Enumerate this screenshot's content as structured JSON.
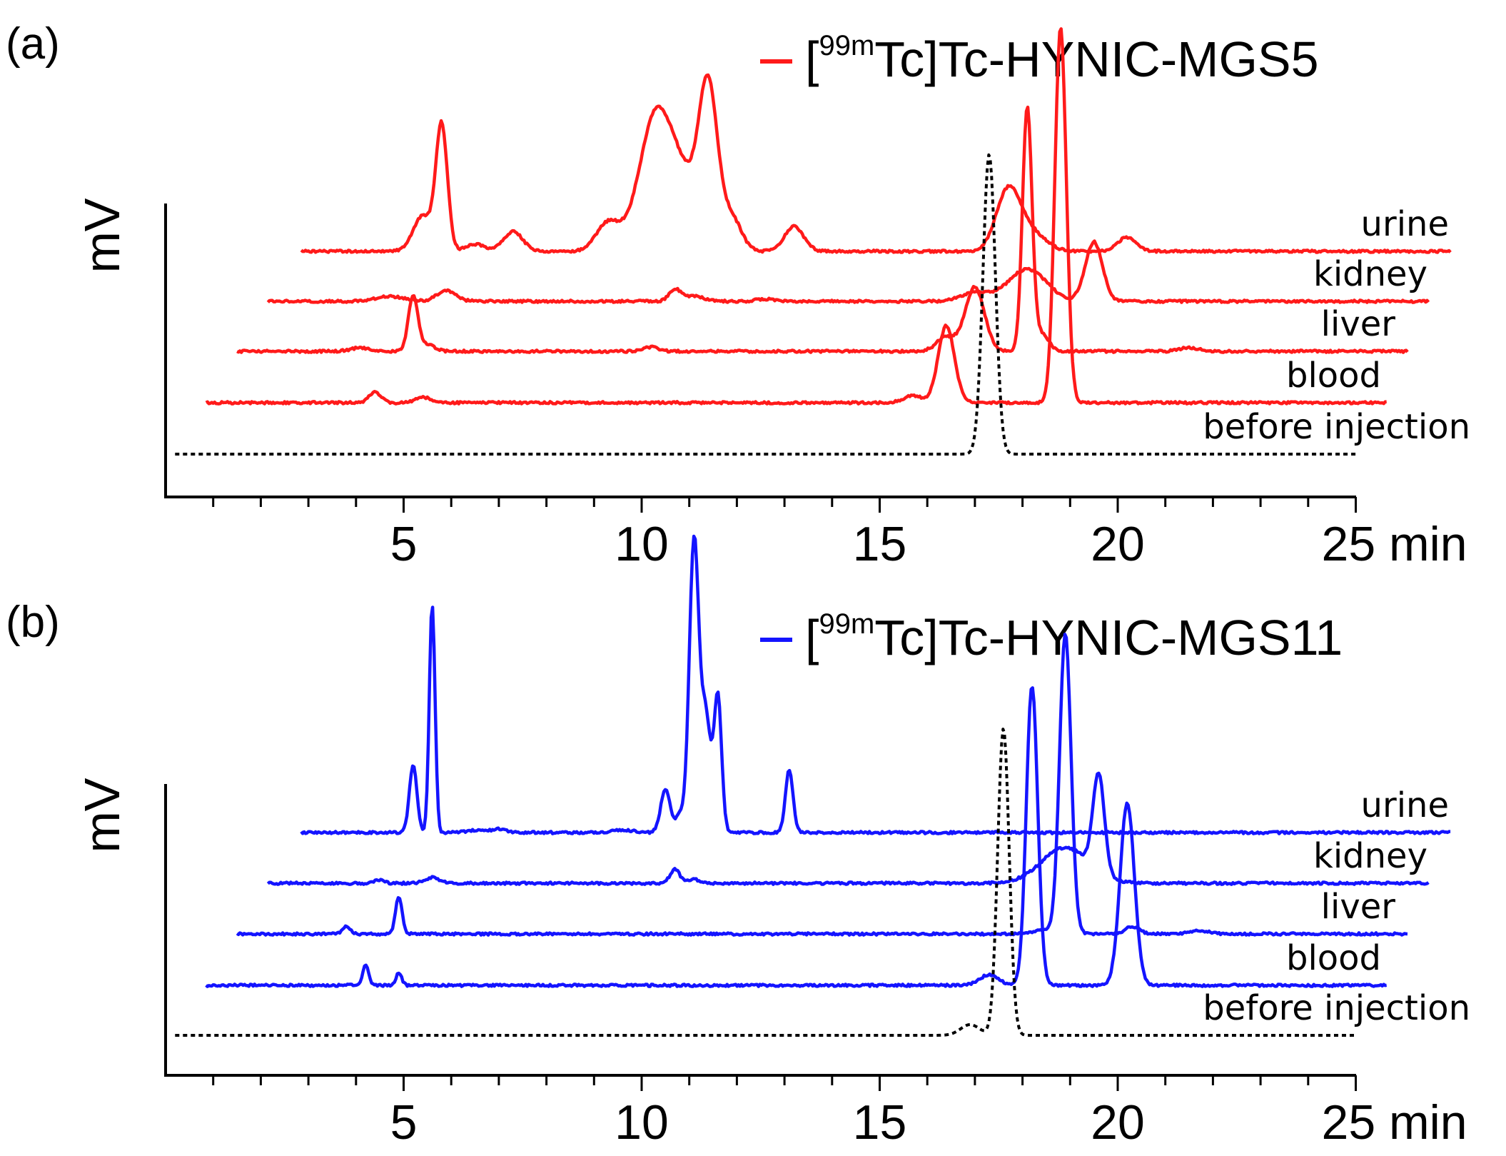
{
  "chart_data": [
    {
      "type": "line",
      "panel_label": "(a)",
      "compound": {
        "prefix": "[",
        "superscript": "99m",
        "suffix": "Tc]Tc-HYNIC-MGS5"
      },
      "color": "#ff1a1a",
      "ylabel": "mV",
      "xlabel": "min",
      "xlim": [
        0,
        25
      ],
      "xticks": [
        5,
        10,
        15,
        20
      ],
      "last_tick": "25 min",
      "traces": [
        {
          "name": "urine",
          "x_shift": 2.65,
          "peaks": [
            [
              5.4,
              0.5,
              0.2
            ],
            [
              5.8,
              1.75,
              0.12
            ],
            [
              6.5,
              0.1,
              0.2
            ],
            [
              7.3,
              0.28,
              0.2
            ],
            [
              9.3,
              0.4,
              0.25
            ],
            [
              10.3,
              1.9,
              0.35
            ],
            [
              10.9,
              0.75,
              0.3
            ],
            [
              11.4,
              2.25,
              0.2
            ],
            [
              11.9,
              0.45,
              0.2
            ],
            [
              13.2,
              0.35,
              0.2
            ],
            [
              17.7,
              0.85,
              0.25
            ],
            [
              18.2,
              0.25,
              0.3
            ],
            [
              20.2,
              0.2,
              0.2
            ]
          ]
        },
        {
          "name": "kidney",
          "x_shift": 1.95,
          "peaks": [
            [
              4.7,
              0.07,
              0.3
            ],
            [
              5.9,
              0.15,
              0.2
            ],
            [
              10.7,
              0.17,
              0.12
            ],
            [
              11.1,
              0.07,
              0.2
            ],
            [
              12.6,
              0.03,
              0.2
            ],
            [
              17.0,
              0.12,
              0.3
            ],
            [
              18.1,
              0.45,
              0.4
            ],
            [
              19.5,
              0.83,
              0.18
            ]
          ]
        },
        {
          "name": "liver",
          "x_shift": 1.3,
          "peaks": [
            [
              4.1,
              0.05,
              0.2
            ],
            [
              5.2,
              0.78,
              0.1
            ],
            [
              5.5,
              0.1,
              0.15
            ],
            [
              10.2,
              0.06,
              0.15
            ],
            [
              16.4,
              0.2,
              0.2
            ],
            [
              17.0,
              0.9,
              0.2
            ],
            [
              18.1,
              3.4,
              0.1
            ],
            [
              18.4,
              0.25,
              0.15
            ],
            [
              21.5,
              0.05,
              0.2
            ]
          ]
        },
        {
          "name": "blood",
          "x_shift": 0.65,
          "peaks": [
            [
              4.4,
              0.15,
              0.12
            ],
            [
              5.4,
              0.08,
              0.15
            ],
            [
              15.7,
              0.1,
              0.2
            ],
            [
              16.4,
              1.08,
              0.17
            ],
            [
              18.8,
              5.25,
              0.12
            ]
          ]
        },
        {
          "name": "before injection",
          "x_shift": 0.0,
          "dotted": true,
          "peaks": [
            [
              17.3,
              4.2,
              0.13
            ]
          ]
        }
      ]
    },
    {
      "type": "line",
      "panel_label": "(b)",
      "compound": {
        "prefix": "[",
        "superscript": "99m",
        "suffix": "Tc]Tc-HYNIC-MGS11"
      },
      "color": "#1414ff",
      "ylabel": "mV",
      "xlabel": "min",
      "xlim": [
        0,
        25
      ],
      "xticks": [
        5,
        10,
        15,
        20
      ],
      "last_tick": "25 min",
      "traces": [
        {
          "name": "urine",
          "x_shift": 2.65,
          "peaks": [
            [
              5.2,
              0.95,
              0.08
            ],
            [
              5.6,
              3.2,
              0.06
            ],
            [
              6.5,
              0.03,
              0.2
            ],
            [
              7.0,
              0.05,
              0.15
            ],
            [
              9.6,
              0.04,
              0.2
            ],
            [
              10.5,
              0.6,
              0.1
            ],
            [
              10.8,
              0.25,
              0.08
            ],
            [
              11.1,
              4.1,
              0.1
            ],
            [
              11.35,
              1.6,
              0.1
            ],
            [
              11.6,
              1.9,
              0.08
            ],
            [
              13.1,
              0.88,
              0.08
            ]
          ]
        },
        {
          "name": "kidney",
          "x_shift": 1.95,
          "peaks": [
            [
              4.5,
              0.05,
              0.1
            ],
            [
              5.6,
              0.08,
              0.15
            ],
            [
              10.7,
              0.2,
              0.1
            ],
            [
              11.1,
              0.06,
              0.1
            ],
            [
              18.9,
              0.5,
              0.5
            ],
            [
              19.6,
              1.37,
              0.12
            ]
          ]
        },
        {
          "name": "liver",
          "x_shift": 1.3,
          "peaks": [
            [
              3.8,
              0.1,
              0.08
            ],
            [
              4.9,
              0.52,
              0.07
            ],
            [
              18.4,
              0.05,
              0.2
            ],
            [
              18.9,
              4.2,
              0.12
            ],
            [
              20.3,
              0.1,
              0.15
            ],
            [
              21.7,
              0.05,
              0.2
            ]
          ]
        },
        {
          "name": "blood",
          "x_shift": 0.65,
          "peaks": [
            [
              4.2,
              0.3,
              0.06
            ],
            [
              4.9,
              0.18,
              0.06
            ],
            [
              17.3,
              0.15,
              0.2
            ],
            [
              18.2,
              4.2,
              0.12
            ],
            [
              20.2,
              2.55,
              0.15
            ]
          ]
        },
        {
          "name": "before injection",
          "x_shift": 0.0,
          "dotted": true,
          "peaks": [
            [
              16.9,
              0.15,
              0.2
            ],
            [
              17.6,
              4.3,
              0.12
            ]
          ]
        }
      ]
    }
  ]
}
